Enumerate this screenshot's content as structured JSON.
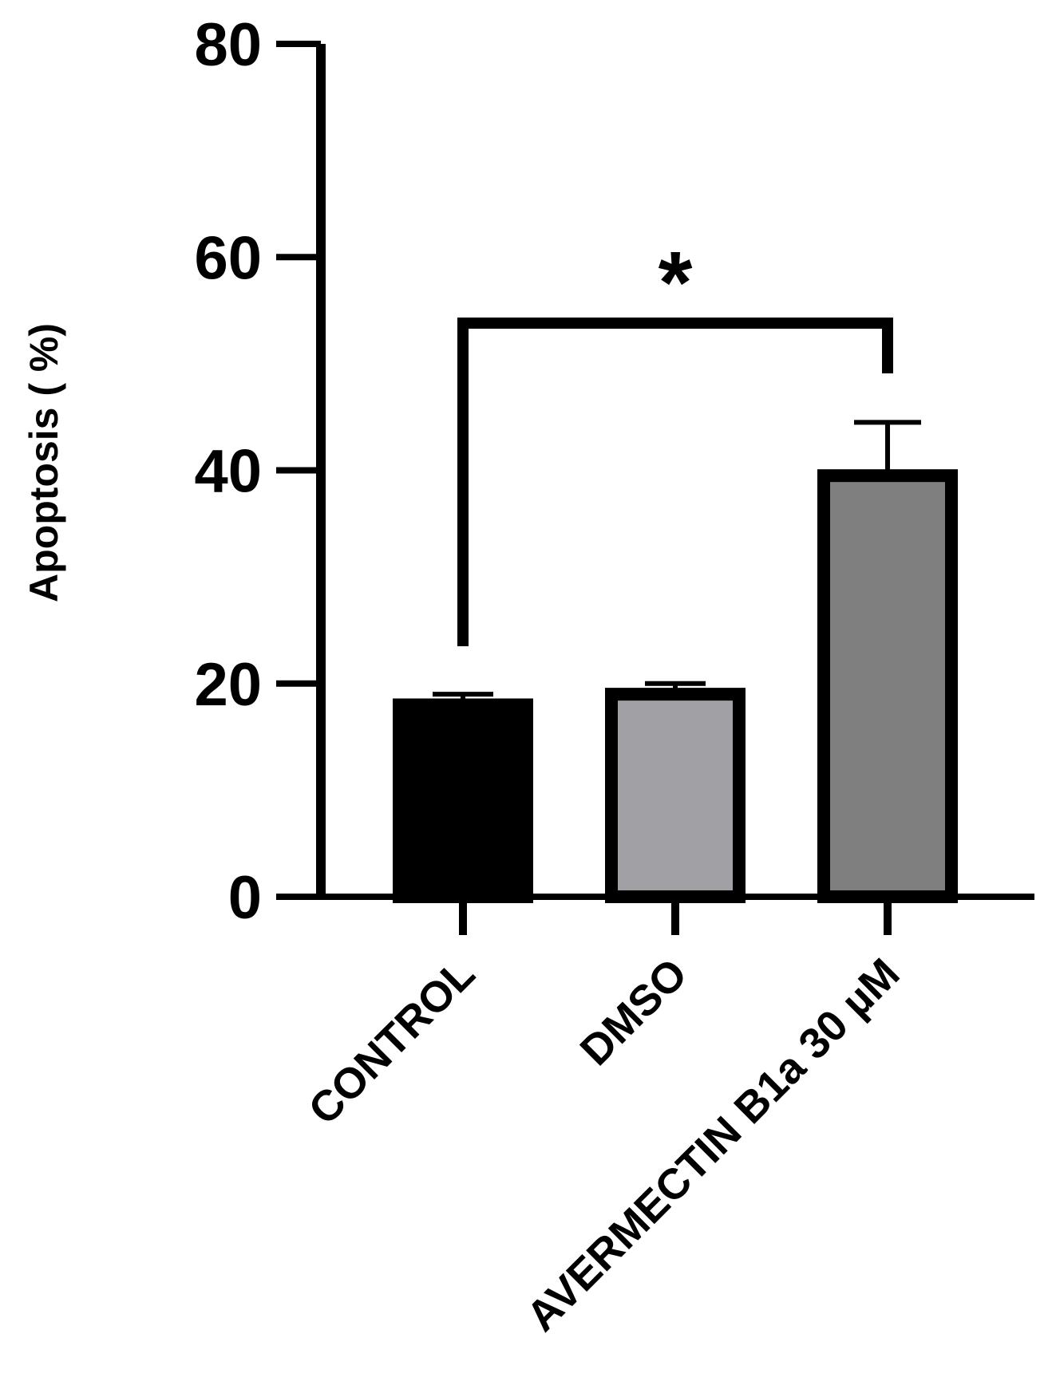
{
  "chart_data": {
    "type": "bar",
    "title": "",
    "xlabel": "",
    "ylabel": "Apoptosis ( %)",
    "ylim": [
      0,
      80
    ],
    "yticks": [
      0,
      20,
      40,
      60,
      80
    ],
    "categories": [
      "CONTROL",
      "DMSO",
      "AVERMECTIN  B1a 30 µM"
    ],
    "values": [
      18,
      19,
      39.5
    ],
    "errors": [
      1,
      1,
      5
    ],
    "colors": [
      "#000000",
      "#a1a1a5",
      "#7f7f7f"
    ],
    "grid": false,
    "significance": {
      "from": "CONTROL",
      "to": "AVERMECTIN  B1a 30 µM",
      "label": "*"
    }
  }
}
